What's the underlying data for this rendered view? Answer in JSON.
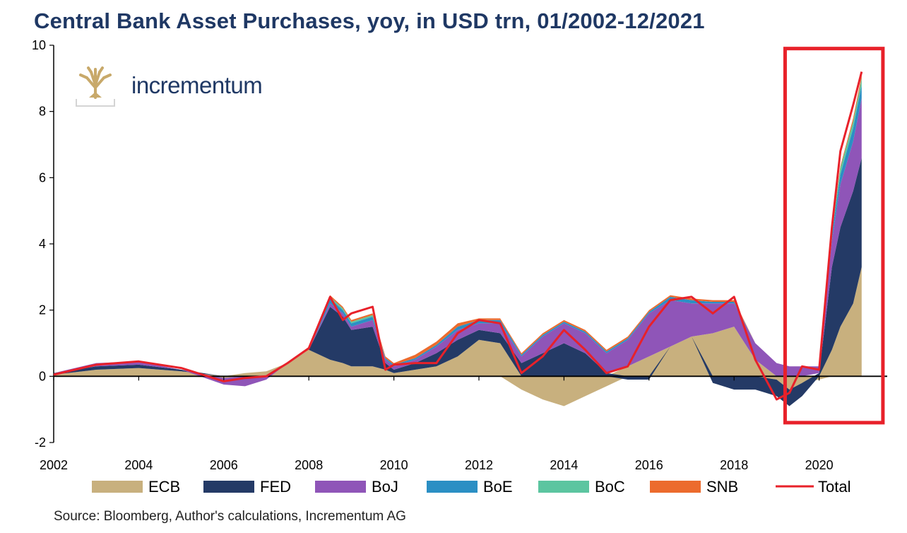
{
  "title": "Central Bank Asset Purchases, yoy, in USD trn, 01/2002-12/2021",
  "brand": "incrementum",
  "source": "Source: Bloomberg, Author's calculations, Incrementum AG",
  "colors": {
    "title": "#1f3864",
    "highlight_box": "#e8212a",
    "axis": "#000000"
  },
  "chart_data": {
    "type": "area",
    "stacked": true,
    "x_unit": "year",
    "xlim": [
      2002,
      2022
    ],
    "ylim": [
      -2,
      10
    ],
    "x_ticks": [
      2002,
      2004,
      2006,
      2008,
      2010,
      2012,
      2014,
      2016,
      2018,
      2020
    ],
    "y_ticks": [
      -2,
      0,
      2,
      4,
      6,
      8,
      10
    ],
    "grid": false,
    "legend_position": "bottom",
    "x": [
      2002.0,
      2003.0,
      2004.0,
      2005.0,
      2006.0,
      2006.5,
      2007.0,
      2007.5,
      2008.0,
      2008.5,
      2008.8,
      2009.0,
      2009.5,
      2009.8,
      2010.0,
      2010.5,
      2011.0,
      2011.5,
      2012.0,
      2012.5,
      2013.0,
      2013.5,
      2014.0,
      2014.5,
      2015.0,
      2015.5,
      2016.0,
      2016.5,
      2017.0,
      2017.5,
      2018.0,
      2018.5,
      2019.0,
      2019.3,
      2019.6,
      2020.0,
      2020.3,
      2020.5,
      2020.8,
      2021.0
    ],
    "series": [
      {
        "name": "ECB",
        "color": "#c8b07e",
        "values": [
          0.05,
          0.2,
          0.25,
          0.15,
          -0.05,
          0.1,
          0.15,
          0.4,
          0.8,
          0.5,
          0.4,
          0.3,
          0.3,
          0.2,
          0.1,
          0.2,
          0.3,
          0.6,
          1.1,
          1.0,
          -0.4,
          -0.7,
          -0.9,
          -0.6,
          -0.3,
          0.3,
          0.6,
          0.9,
          1.2,
          1.3,
          1.5,
          0.5,
          -0.1,
          -0.4,
          -0.2,
          -0.1,
          0.8,
          1.5,
          2.2,
          3.3
        ]
      },
      {
        "name": "FED",
        "color": "#243a66",
        "values": [
          0.05,
          0.1,
          0.1,
          0.05,
          0.0,
          0.0,
          0.0,
          0.0,
          0.0,
          1.6,
          1.4,
          1.1,
          1.2,
          0.2,
          0.1,
          0.2,
          0.4,
          0.5,
          0.3,
          0.3,
          0.4,
          0.7,
          1.0,
          0.7,
          0.1,
          -0.1,
          -0.1,
          0.0,
          0.0,
          -0.2,
          -0.4,
          -0.4,
          -0.5,
          -0.5,
          -0.4,
          0.1,
          2.5,
          3.0,
          3.4,
          3.3
        ]
      },
      {
        "name": "BoJ",
        "color": "#8f55b8",
        "values": [
          0.0,
          0.1,
          0.1,
          0.0,
          -0.2,
          -0.3,
          -0.1,
          0.0,
          0.0,
          0.1,
          0.1,
          0.1,
          0.2,
          0.1,
          0.1,
          0.1,
          0.2,
          0.3,
          0.2,
          0.3,
          0.2,
          0.5,
          0.6,
          0.6,
          0.6,
          0.8,
          1.3,
          1.4,
          1.0,
          0.9,
          0.7,
          0.5,
          0.4,
          0.3,
          0.3,
          0.2,
          0.8,
          1.3,
          1.5,
          1.8
        ]
      },
      {
        "name": "BoE",
        "color": "#2b8fc4",
        "values": [
          0.0,
          0.0,
          0.0,
          0.0,
          0.0,
          0.0,
          0.0,
          0.0,
          0.0,
          0.15,
          0.1,
          0.1,
          0.1,
          0.05,
          0.05,
          0.05,
          0.05,
          0.1,
          0.1,
          0.1,
          0.05,
          0.05,
          0.05,
          0.05,
          0.05,
          0.05,
          0.05,
          0.1,
          0.1,
          0.05,
          0.05,
          0.0,
          0.0,
          0.0,
          0.0,
          0.0,
          0.2,
          0.3,
          0.4,
          0.4
        ]
      },
      {
        "name": "BoC",
        "color": "#5cc5a0",
        "values": [
          0.0,
          0.0,
          0.0,
          0.0,
          0.0,
          0.0,
          0.0,
          0.0,
          0.0,
          0.05,
          0.05,
          0.05,
          0.05,
          0.0,
          0.0,
          0.0,
          0.0,
          0.0,
          0.0,
          0.0,
          0.0,
          0.0,
          0.0,
          0.0,
          0.0,
          0.0,
          0.0,
          0.0,
          0.0,
          0.0,
          0.0,
          0.0,
          0.0,
          0.0,
          0.0,
          0.0,
          0.15,
          0.2,
          0.2,
          0.2
        ]
      },
      {
        "name": "SNB",
        "color": "#ec6b2d",
        "values": [
          0.0,
          0.0,
          0.0,
          0.0,
          0.0,
          0.0,
          0.0,
          0.0,
          0.05,
          0.05,
          0.05,
          0.05,
          0.05,
          0.05,
          0.05,
          0.1,
          0.1,
          0.1,
          0.05,
          0.05,
          0.05,
          0.05,
          0.05,
          0.05,
          0.05,
          0.05,
          0.05,
          0.05,
          0.05,
          0.05,
          0.05,
          0.0,
          0.0,
          0.0,
          0.0,
          0.0,
          0.05,
          0.05,
          0.1,
          0.1
        ]
      }
    ],
    "total": {
      "name": "Total",
      "color": "#e8212a",
      "values": [
        0.05,
        0.35,
        0.45,
        0.25,
        -0.15,
        -0.05,
        0.0,
        0.4,
        0.85,
        2.4,
        1.7,
        1.9,
        2.1,
        0.2,
        0.35,
        0.4,
        0.4,
        1.3,
        1.7,
        1.6,
        0.1,
        0.6,
        1.4,
        0.8,
        0.1,
        0.3,
        1.5,
        2.3,
        2.4,
        1.9,
        2.4,
        0.5,
        -0.7,
        -0.5,
        0.3,
        0.2,
        4.5,
        6.8,
        8.2,
        9.2
      ]
    },
    "highlight": {
      "x": [
        2019.2,
        2021.5
      ],
      "y": [
        -1.4,
        9.9
      ]
    }
  }
}
